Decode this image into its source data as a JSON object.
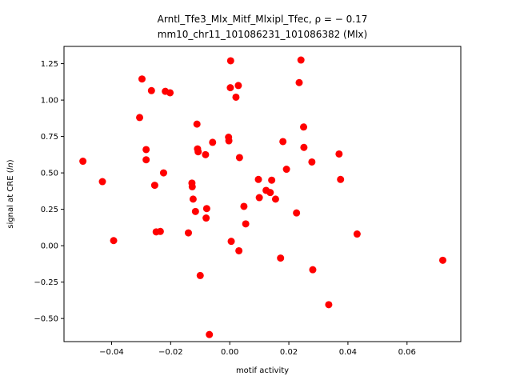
{
  "chart_data": {
    "type": "scatter",
    "title_line1": "Arntl_Tfe3_Mlx_Mitf_Mlxipl_Tfec, ρ = − 0.17",
    "title_line2": "mm10_chr11_101086231_101086382 (Mlx)",
    "xlabel": "motif activity",
    "ylabel": "signal at CRE (ln)",
    "xlim": [
      -0.0561,
      0.0782
    ],
    "ylim": [
      -0.6586,
      1.3686
    ],
    "x_ticks": [
      -0.04,
      -0.02,
      0.0,
      0.02,
      0.04,
      0.06
    ],
    "x_tick_labels": [
      "−0.04",
      "−0.02",
      "0.00",
      "0.02",
      "0.04",
      "0.06"
    ],
    "y_ticks": [
      -0.5,
      -0.25,
      0.0,
      0.25,
      0.5,
      0.75,
      1.0,
      1.25
    ],
    "y_tick_labels": [
      "−0.50",
      "−0.25",
      "0.00",
      "0.25",
      "0.50",
      "0.75",
      "1.00",
      "1.25"
    ],
    "marker_color": "#ff0000",
    "grid": false,
    "points": [
      {
        "x": -0.0497,
        "y": 0.58
      },
      {
        "x": -0.0431,
        "y": 0.44
      },
      {
        "x": -0.0393,
        "y": 0.035
      },
      {
        "x": -0.0305,
        "y": 0.88
      },
      {
        "x": -0.0297,
        "y": 1.145
      },
      {
        "x": -0.0283,
        "y": 0.66
      },
      {
        "x": -0.0283,
        "y": 0.59
      },
      {
        "x": -0.0265,
        "y": 1.065
      },
      {
        "x": -0.0254,
        "y": 0.415
      },
      {
        "x": -0.0249,
        "y": 0.095
      },
      {
        "x": -0.0235,
        "y": 0.098
      },
      {
        "x": -0.0224,
        "y": 0.5
      },
      {
        "x": -0.0218,
        "y": 1.06
      },
      {
        "x": -0.0202,
        "y": 1.05
      },
      {
        "x": -0.014,
        "y": 0.088
      },
      {
        "x": -0.0128,
        "y": 0.43
      },
      {
        "x": -0.0127,
        "y": 0.405
      },
      {
        "x": -0.0124,
        "y": 0.32
      },
      {
        "x": -0.0116,
        "y": 0.235
      },
      {
        "x": -0.0111,
        "y": 0.835
      },
      {
        "x": -0.0109,
        "y": 0.665
      },
      {
        "x": -0.0107,
        "y": 0.645
      },
      {
        "x": -0.01,
        "y": -0.205
      },
      {
        "x": -0.0082,
        "y": 0.625
      },
      {
        "x": -0.008,
        "y": 0.19
      },
      {
        "x": -0.0078,
        "y": 0.255
      },
      {
        "x": -0.0069,
        "y": -0.61
      },
      {
        "x": -0.0058,
        "y": 0.71
      },
      {
        "x": -0.0004,
        "y": 0.745
      },
      {
        "x": -0.0003,
        "y": 0.72
      },
      {
        "x": 0.0002,
        "y": 1.085
      },
      {
        "x": 0.0003,
        "y": 1.27
      },
      {
        "x": 0.0005,
        "y": 0.03
      },
      {
        "x": 0.0021,
        "y": 1.02
      },
      {
        "x": 0.0029,
        "y": 1.1
      },
      {
        "x": 0.0031,
        "y": -0.035
      },
      {
        "x": 0.0033,
        "y": 0.605
      },
      {
        "x": 0.0048,
        "y": 0.27
      },
      {
        "x": 0.0054,
        "y": 0.15
      },
      {
        "x": 0.0097,
        "y": 0.455
      },
      {
        "x": 0.01,
        "y": 0.33
      },
      {
        "x": 0.0123,
        "y": 0.38
      },
      {
        "x": 0.0137,
        "y": 0.365
      },
      {
        "x": 0.0142,
        "y": 0.45
      },
      {
        "x": 0.0155,
        "y": 0.32
      },
      {
        "x": 0.0172,
        "y": -0.085
      },
      {
        "x": 0.018,
        "y": 0.715
      },
      {
        "x": 0.0192,
        "y": 0.525
      },
      {
        "x": 0.0226,
        "y": 0.225
      },
      {
        "x": 0.0235,
        "y": 1.12
      },
      {
        "x": 0.0241,
        "y": 1.275
      },
      {
        "x": 0.025,
        "y": 0.815
      },
      {
        "x": 0.0251,
        "y": 0.675
      },
      {
        "x": 0.0278,
        "y": 0.575
      },
      {
        "x": 0.0281,
        "y": -0.165
      },
      {
        "x": 0.0335,
        "y": -0.405
      },
      {
        "x": 0.037,
        "y": 0.63
      },
      {
        "x": 0.0375,
        "y": 0.455
      },
      {
        "x": 0.0431,
        "y": 0.08
      },
      {
        "x": 0.0721,
        "y": -0.1
      }
    ]
  }
}
